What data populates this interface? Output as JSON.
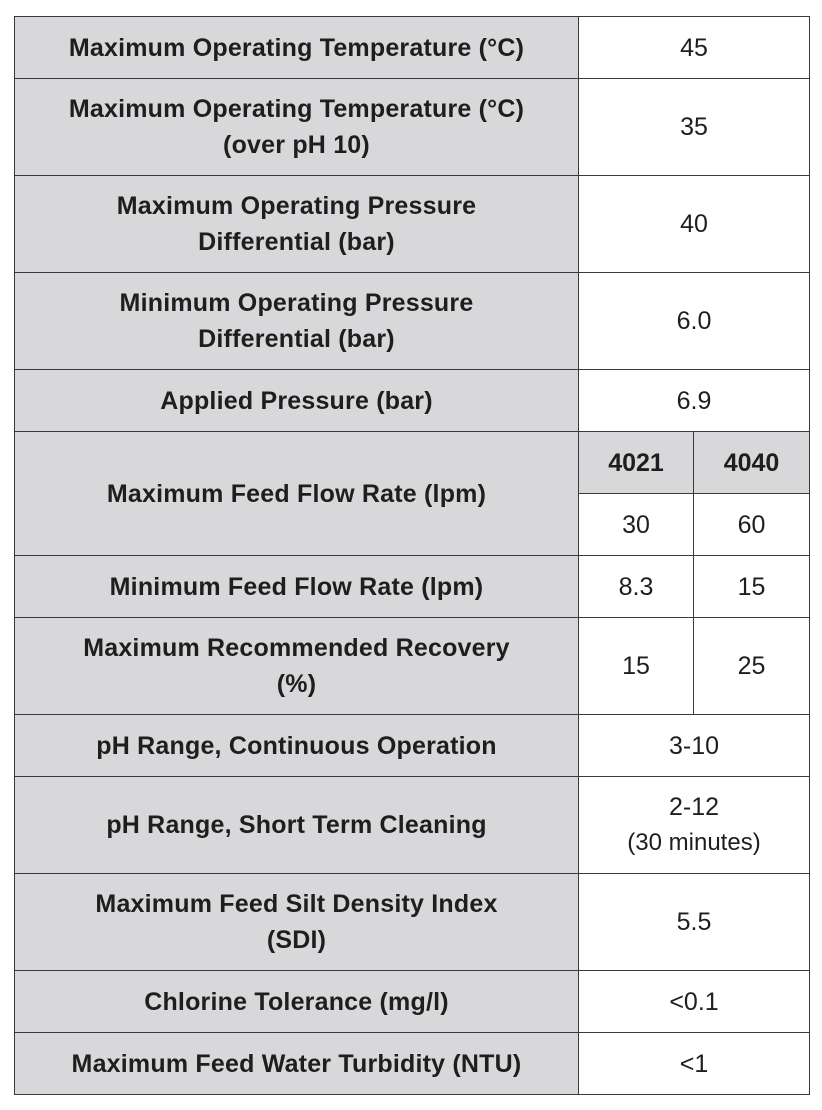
{
  "table": {
    "rows": [
      {
        "label": "Maximum Operating Temperature (°C)",
        "value": "45"
      },
      {
        "label_line1": "Maximum Operating Temperature (°C)",
        "label_line2": "(over pH 10)",
        "value": "35"
      },
      {
        "label_line1": "Maximum Operating Pressure",
        "label_line2": "Differential (bar)",
        "value": "40"
      },
      {
        "label_line1": "Minimum Operating Pressure",
        "label_line2": "Differential (bar)",
        "value": "6.0"
      },
      {
        "label": "Applied Pressure (bar)",
        "value": "6.9"
      },
      {
        "label": "Maximum Feed Flow Rate (lpm)",
        "col_a_header": "4021",
        "col_b_header": "4040",
        "value_a": "30",
        "value_b": "60"
      },
      {
        "label": "Minimum Feed Flow Rate (lpm)",
        "value_a": "8.3",
        "value_b": "15"
      },
      {
        "label_line1": "Maximum Recommended Recovery",
        "label_line2": "(%)",
        "value_a": "15",
        "value_b": "25"
      },
      {
        "label": "pH Range, Continuous Operation",
        "value": "3-10"
      },
      {
        "label": "pH Range, Short Term Cleaning",
        "value_line1": "2-12",
        "value_line2": "(30 minutes)"
      },
      {
        "label_line1": "Maximum Feed Silt Density Index",
        "label_line2": "(SDI)",
        "value": "5.5"
      },
      {
        "label": "Chlorine Tolerance (mg/l)",
        "value": "<0.1"
      },
      {
        "label": "Maximum Feed Water Turbidity (NTU)",
        "value": "<1"
      }
    ]
  }
}
